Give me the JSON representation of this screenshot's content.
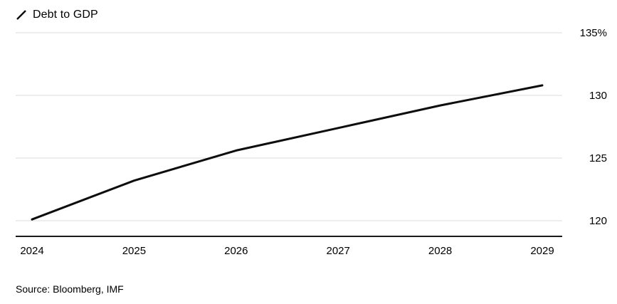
{
  "legend": {
    "label": "Debt to GDP"
  },
  "source": {
    "text": "Source: Bloomberg, IMF"
  },
  "colors": {
    "line": "#0d0d0d",
    "grid": "#dcdcdc",
    "axis": "#1a1a1a",
    "text": "#000000"
  },
  "chart_data": {
    "type": "line",
    "title": "",
    "xlabel": "",
    "ylabel": "",
    "legend_entries": [
      "Debt to GDP"
    ],
    "legend_position": "top-left",
    "grid": "horizontal",
    "categories": [
      "2024",
      "2025",
      "2026",
      "2027",
      "2028",
      "2029"
    ],
    "x": [
      2024,
      2025,
      2026,
      2027,
      2028,
      2029
    ],
    "series": [
      {
        "name": "Debt to GDP",
        "values": [
          120.1,
          123.2,
          125.6,
          127.4,
          129.2,
          130.8
        ]
      }
    ],
    "ylim": [
      118.75,
      136.5
    ],
    "y_ticks": {
      "values": [
        120,
        125,
        130,
        135
      ],
      "labels": [
        "120",
        "125",
        "130",
        "135%"
      ]
    }
  }
}
